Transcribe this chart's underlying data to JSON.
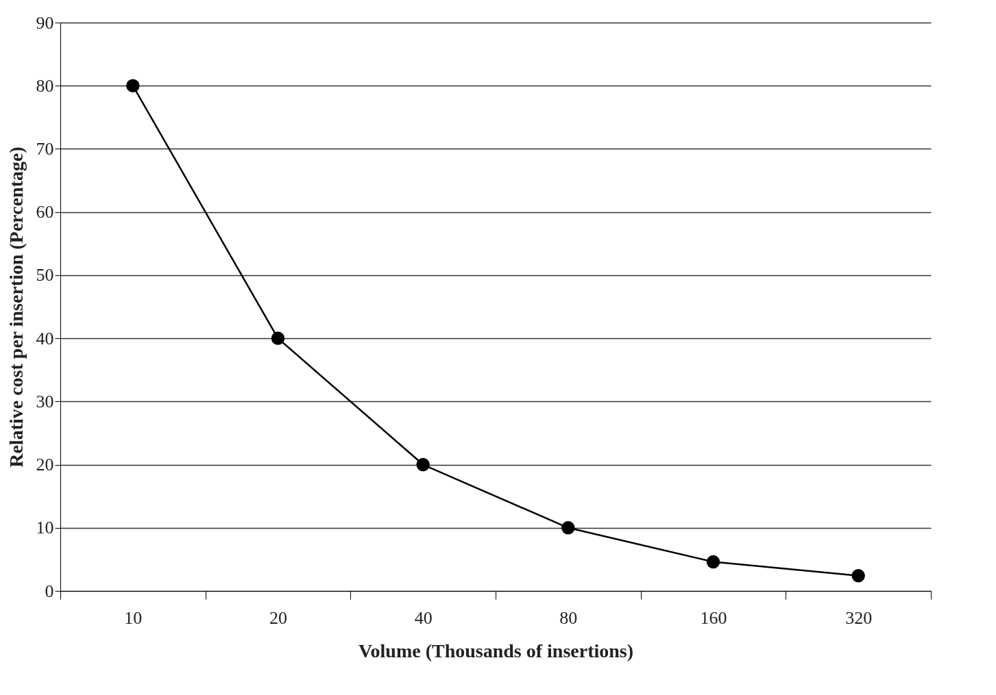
{
  "chart_data": {
    "type": "line",
    "xlabel": "Volume (Thousands of insertions)",
    "ylabel": "Relative cost per insertion (Percentage)",
    "categories": [
      "10",
      "20",
      "40",
      "80",
      "160",
      "320"
    ],
    "series": [
      {
        "color": "#000000",
        "values": [
          80,
          40,
          20,
          10,
          4.6,
          2.4
        ]
      }
    ],
    "ylim": [
      0,
      90
    ],
    "yticks": [
      0,
      10,
      20,
      30,
      40,
      50,
      60,
      70,
      80,
      90
    ],
    "grid": "y",
    "marker": "circle",
    "line_style": "solid",
    "legend": false
  }
}
